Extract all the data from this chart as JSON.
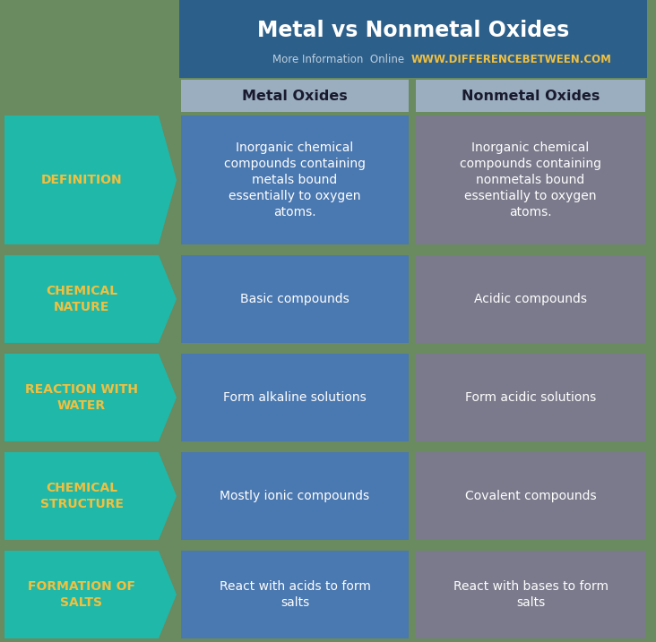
{
  "title": "Metal vs Nonmetal Oxides",
  "subtitle_plain": "More Information  Online  ",
  "subtitle_url": "WWW.DIFFERENCEBETWEEN.COM",
  "title_color": "#FFFFFF",
  "title_bg": "#2c5f8a",
  "subtitle_plain_color": "#c0d0e0",
  "subtitle_url_color": "#f0c040",
  "header_bg": "#9aaec0",
  "header_text_color": "#1a1a2e",
  "col1_header": "Metal Oxides",
  "col2_header": "Nonmetal Oxides",
  "row_label_bg": "#20b8a8",
  "row_label_text_color": "#f0c040",
  "col1_bg": "#4a78b0",
  "col2_bg": "#7a7a8c",
  "cell_text_color": "#FFFFFF",
  "bg_color": "#6a8a60",
  "rows": [
    {
      "label": "DEFINITION",
      "col1": "Inorganic chemical\ncompounds containing\nmetals bound\nessentially to oxygen\natoms.",
      "col2": "Inorganic chemical\ncompounds containing\nnonmetals bound\nessentially to oxygen\natoms."
    },
    {
      "label": "CHEMICAL\nNATURE",
      "col1": "Basic compounds",
      "col2": "Acidic compounds"
    },
    {
      "label": "REACTION WITH\nWATER",
      "col1": "Form alkaline solutions",
      "col2": "Form acidic solutions"
    },
    {
      "label": "CHEMICAL\nSTRUCTURE",
      "col1": "Mostly ionic compounds",
      "col2": "Covalent compounds"
    },
    {
      "label": "FORMATION OF\nSALTS",
      "col1": "React with acids to form\nsalts",
      "col2": "React with bases to form\nsalts"
    }
  ],
  "figsize": [
    7.32,
    7.17
  ],
  "dpi": 100
}
